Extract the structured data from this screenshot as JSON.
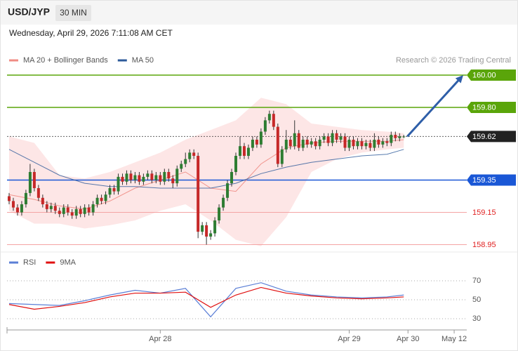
{
  "header": {
    "symbol": "USD/JYP",
    "interval": "30 MIN",
    "timestamp": "Wednesday, April 29, 2026 7:11:08 AM CET"
  },
  "chart_data": [
    {
      "type": "candlestick",
      "credit": "Research © 2026 Trading Central",
      "up_color": "#2e7d32",
      "down_color": "#c62828",
      "xlim": [
        -0.5,
        109
      ],
      "xticks": [
        {
          "value": 36,
          "label": "Apr 28"
        },
        {
          "value": 81,
          "label": "Apr 29"
        },
        {
          "value": 95,
          "label": "Apr 30"
        },
        {
          "value": 106,
          "label": "May 12"
        }
      ],
      "ylim": [
        158.9,
        160.2
      ],
      "open": [
        159.25,
        159.22,
        159.18,
        159.15,
        159.2,
        159.27,
        159.4,
        159.3,
        159.24,
        159.2,
        159.17,
        159.19,
        159.16,
        159.14,
        159.18,
        159.15,
        159.13,
        159.17,
        159.14,
        159.18,
        159.15,
        159.2,
        159.24,
        159.22,
        159.26,
        159.3,
        159.28,
        159.37,
        159.34,
        159.39,
        159.35,
        159.38,
        159.34,
        159.37,
        159.39,
        159.35,
        159.38,
        159.34,
        159.4,
        159.36,
        159.33,
        159.42,
        159.45,
        159.48,
        159.52,
        159.5,
        159.03,
        159.07,
        159.0,
        159.02,
        159.1,
        159.18,
        159.24,
        159.33,
        159.4,
        159.5,
        159.56,
        159.5,
        159.55,
        159.6,
        159.57,
        159.65,
        159.72,
        159.76,
        159.68,
        159.45,
        159.54,
        159.6,
        159.56,
        159.64,
        159.55,
        159.6,
        159.57,
        159.59,
        159.56,
        159.6,
        159.62,
        159.58,
        159.64,
        159.6,
        159.62,
        159.55,
        159.6,
        159.56,
        159.59,
        159.56,
        159.58,
        159.55,
        159.6,
        159.57,
        159.59,
        159.58,
        159.63,
        159.61,
        159.62
      ],
      "high": [
        159.27,
        159.24,
        159.2,
        159.22,
        159.29,
        159.45,
        159.42,
        159.32,
        159.26,
        159.22,
        159.21,
        159.21,
        159.18,
        159.2,
        159.2,
        159.17,
        159.19,
        159.19,
        159.2,
        159.2,
        159.22,
        159.26,
        159.26,
        159.28,
        159.32,
        159.32,
        159.39,
        159.39,
        159.41,
        159.41,
        159.4,
        159.4,
        159.39,
        159.41,
        159.41,
        159.4,
        159.4,
        159.42,
        159.42,
        159.38,
        159.44,
        159.47,
        159.52,
        159.54,
        159.54,
        159.52,
        159.09,
        159.09,
        159.04,
        159.12,
        159.2,
        159.26,
        159.35,
        159.42,
        159.52,
        159.62,
        159.58,
        159.57,
        159.62,
        159.62,
        159.67,
        159.74,
        159.78,
        159.78,
        159.7,
        159.56,
        159.66,
        159.62,
        159.72,
        159.66,
        159.62,
        159.62,
        159.61,
        159.61,
        159.62,
        159.64,
        159.64,
        159.66,
        159.66,
        159.64,
        159.64,
        159.62,
        159.62,
        159.61,
        159.61,
        159.6,
        159.6,
        159.64,
        159.62,
        159.61,
        159.61,
        159.65,
        159.65,
        159.64,
        159.63
      ],
      "low": [
        159.2,
        159.16,
        159.13,
        159.13,
        159.18,
        159.25,
        159.28,
        159.22,
        159.18,
        159.15,
        159.15,
        159.14,
        159.12,
        159.12,
        159.13,
        159.11,
        159.11,
        159.12,
        159.12,
        159.13,
        159.13,
        159.18,
        159.2,
        159.2,
        159.24,
        159.26,
        159.26,
        159.32,
        159.32,
        159.33,
        159.33,
        159.32,
        159.32,
        159.35,
        159.33,
        159.33,
        159.32,
        159.32,
        159.34,
        159.3,
        159.31,
        159.4,
        159.43,
        159.46,
        159.48,
        158.99,
        159.01,
        158.95,
        158.98,
        159.0,
        159.08,
        159.16,
        159.22,
        159.31,
        159.38,
        159.48,
        159.48,
        159.48,
        159.53,
        159.55,
        159.55,
        159.63,
        159.7,
        159.66,
        159.43,
        159.43,
        159.52,
        159.54,
        159.54,
        159.53,
        159.53,
        159.55,
        159.55,
        159.54,
        159.54,
        159.58,
        159.56,
        159.56,
        159.58,
        159.58,
        159.53,
        159.53,
        159.54,
        159.54,
        159.54,
        159.54,
        159.53,
        159.53,
        159.55,
        159.55,
        159.56,
        159.56,
        159.59,
        159.59,
        159.61
      ],
      "close": [
        159.22,
        159.18,
        159.15,
        159.2,
        159.27,
        159.4,
        159.3,
        159.24,
        159.2,
        159.17,
        159.19,
        159.16,
        159.14,
        159.18,
        159.15,
        159.13,
        159.17,
        159.14,
        159.18,
        159.15,
        159.2,
        159.24,
        159.22,
        159.26,
        159.3,
        159.28,
        159.37,
        159.34,
        159.39,
        159.35,
        159.38,
        159.34,
        159.37,
        159.39,
        159.35,
        159.38,
        159.34,
        159.4,
        159.36,
        159.33,
        159.42,
        159.45,
        159.48,
        159.52,
        159.5,
        159.03,
        159.07,
        159.0,
        159.02,
        159.1,
        159.18,
        159.24,
        159.33,
        159.4,
        159.5,
        159.56,
        159.5,
        159.55,
        159.6,
        159.57,
        159.65,
        159.72,
        159.76,
        159.68,
        159.45,
        159.54,
        159.6,
        159.56,
        159.64,
        159.55,
        159.6,
        159.57,
        159.59,
        159.56,
        159.6,
        159.62,
        159.58,
        159.64,
        159.6,
        159.62,
        159.55,
        159.6,
        159.56,
        159.59,
        159.56,
        159.58,
        159.55,
        159.6,
        159.57,
        159.59,
        159.58,
        159.63,
        159.61,
        159.62,
        159.62
      ],
      "series": [
        {
          "name": "MA 20 + Bollinger Bands",
          "color": "#f08c84",
          "band_color": "#fde0e0",
          "x": [
            0,
            6,
            12,
            18,
            24,
            30,
            36,
            42,
            48,
            54,
            60,
            66,
            72,
            78,
            84,
            90,
            94
          ],
          "values": [
            159.26,
            159.23,
            159.19,
            159.17,
            159.22,
            159.3,
            159.35,
            159.4,
            159.3,
            159.28,
            159.45,
            159.55,
            159.58,
            159.59,
            159.59,
            159.59,
            159.6
          ],
          "upper": [
            159.62,
            159.58,
            159.38,
            159.36,
            159.4,
            159.46,
            159.52,
            159.6,
            159.66,
            159.72,
            159.86,
            159.82,
            159.7,
            159.68,
            159.66,
            159.65,
            159.64
          ],
          "lower": [
            159.16,
            159.08,
            159.08,
            159.05,
            159.07,
            159.1,
            159.16,
            159.2,
            159.1,
            158.98,
            158.94,
            159.12,
            159.4,
            159.48,
            159.52,
            159.54,
            159.55
          ]
        },
        {
          "name": "MA 50",
          "color": "#2d5a9a",
          "x": [
            0,
            6,
            12,
            18,
            24,
            30,
            36,
            42,
            48,
            54,
            60,
            66,
            72,
            78,
            84,
            90,
            94
          ],
          "values": [
            159.54,
            159.46,
            159.38,
            159.33,
            159.31,
            159.31,
            159.3,
            159.3,
            159.3,
            159.33,
            159.39,
            159.43,
            159.46,
            159.48,
            159.5,
            159.51,
            159.54
          ]
        }
      ],
      "levels": [
        {
          "value": 160,
          "label": "160.00",
          "color": "#5aa50a",
          "boxed": true,
          "dashed": false
        },
        {
          "value": 159.8,
          "label": "159.80",
          "color": "#5aa50a",
          "boxed": true,
          "dashed": false
        },
        {
          "value": 159.62,
          "label": "159.62",
          "color": "#222222",
          "boxed": true,
          "dashed": true
        },
        {
          "value": 159.35,
          "label": "159.35",
          "color": "#1a57d6",
          "boxed": true,
          "dashed": false
        },
        {
          "value": 159.15,
          "label": "159.15",
          "color": "#e02020",
          "boxed": false,
          "dashed": false
        },
        {
          "value": 158.95,
          "label": "158.95",
          "color": "#e02020",
          "boxed": false,
          "dashed": false
        }
      ]
    },
    {
      "type": "line",
      "xlim": [
        -0.5,
        109
      ],
      "ylim": [
        20,
        80
      ],
      "yticks": [
        30,
        50,
        70
      ],
      "grid": true,
      "series": [
        {
          "name": "RSI",
          "color": "#5b7fd6",
          "x": [
            0,
            6,
            12,
            18,
            24,
            30,
            36,
            42,
            48,
            54,
            60,
            66,
            72,
            78,
            84,
            90,
            94
          ],
          "values": [
            46,
            45,
            44,
            49,
            55,
            60,
            57,
            62,
            32,
            62,
            68,
            59,
            55,
            53,
            52,
            53,
            55
          ]
        },
        {
          "name": "9MA",
          "color": "#e01010",
          "x": [
            0,
            6,
            12,
            18,
            24,
            30,
            36,
            42,
            48,
            54,
            60,
            66,
            72,
            78,
            84,
            90,
            94
          ],
          "values": [
            45,
            40,
            43,
            47,
            53,
            57,
            57,
            58,
            42,
            55,
            63,
            57,
            54,
            52,
            51,
            52,
            53
          ]
        }
      ]
    }
  ]
}
